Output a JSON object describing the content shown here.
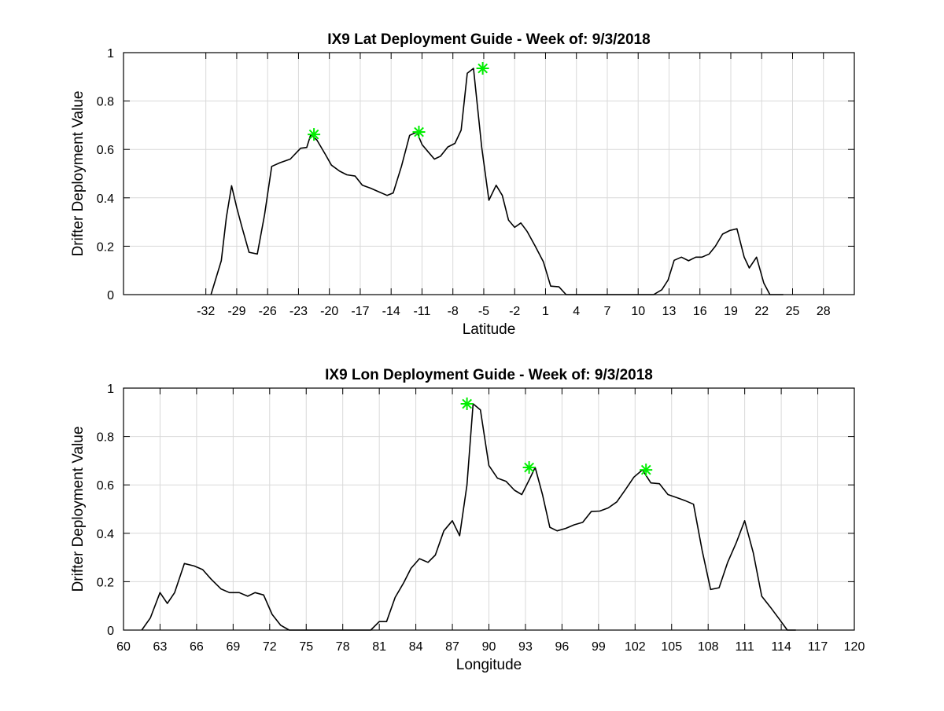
{
  "chart_data": [
    {
      "type": "line",
      "title": "IX9 Lat Deployment Guide - Week of: 9/3/2018",
      "xlabel": "Latitude",
      "ylabel": "Drifter Deployment Value",
      "xlim": [
        -40,
        31
      ],
      "ylim": [
        0,
        1
      ],
      "xticks": [
        -32,
        -29,
        -26,
        -23,
        -20,
        -17,
        -14,
        -11,
        -8,
        -5,
        -2,
        1,
        4,
        7,
        10,
        13,
        16,
        19,
        22,
        25,
        28
      ],
      "yticks": [
        0,
        0.2,
        0.4,
        0.6,
        0.8,
        1
      ],
      "grid": true,
      "series": [
        {
          "color": "#000000",
          "x": [
            -31.5,
            -30.5,
            -30,
            -29.5,
            -29,
            -28.5,
            -27.8,
            -27,
            -26.3,
            -25.6,
            -24.8,
            -23.8,
            -22.8,
            -22.2,
            -21.8,
            -21.2,
            -20.4,
            -19.8,
            -19,
            -18.3,
            -17.5,
            -16.8,
            -16,
            -15.2,
            -14.4,
            -13.8,
            -13,
            -12.2,
            -11.5,
            -11,
            -10.4,
            -9.8,
            -9.2,
            -8.5,
            -7.8,
            -7.2,
            -6.6,
            -6,
            -5.2,
            -4.5,
            -3.8,
            -3.2,
            -2.6,
            -2,
            -1.4,
            -0.8,
            0,
            0.8,
            1.5,
            2.3,
            3,
            4,
            4.7,
            5.5,
            6.5,
            7.5,
            8.5,
            9.5,
            10.5,
            11.5,
            12.3,
            12.9,
            13.5,
            14.2,
            14.9,
            15.6,
            16.2,
            16.9,
            17.5,
            18.2,
            18.9,
            19.6,
            20.3,
            20.8,
            21.5,
            22.2,
            22.8,
            23.5,
            24.1
          ],
          "y": [
            0.0,
            0.14,
            0.32,
            0.45,
            0.36,
            0.28,
            0.175,
            0.168,
            0.33,
            0.53,
            0.545,
            0.56,
            0.605,
            0.608,
            0.662,
            0.638,
            0.58,
            0.535,
            0.51,
            0.495,
            0.49,
            0.452,
            0.44,
            0.425,
            0.41,
            0.42,
            0.53,
            0.658,
            0.672,
            0.62,
            0.59,
            0.56,
            0.572,
            0.61,
            0.625,
            0.68,
            0.915,
            0.935,
            0.61,
            0.39,
            0.452,
            0.41,
            0.308,
            0.278,
            0.296,
            0.262,
            0.2,
            0.135,
            0.035,
            0.032,
            0.0,
            0.0,
            0.0,
            0.0,
            0.0,
            0.0,
            0.0,
            0.0,
            0.0,
            0.0,
            0.02,
            0.06,
            0.142,
            0.155,
            0.14,
            0.155,
            0.155,
            0.168,
            0.2,
            0.25,
            0.265,
            0.272,
            0.155,
            0.11,
            0.155,
            0.048,
            0.0,
            0.0,
            0.0
          ]
        }
      ],
      "markers": [
        {
          "x": -21.5,
          "y": 0.662,
          "color": "#00ee00"
        },
        {
          "x": -11.3,
          "y": 0.672,
          "color": "#00ee00"
        },
        {
          "x": -5.1,
          "y": 0.935,
          "color": "#00ee00"
        }
      ]
    },
    {
      "type": "line",
      "title": "IX9 Lon Deployment Guide - Week of: 9/3/2018",
      "xlabel": "Longitude",
      "ylabel": "Drifter Deployment Value",
      "xlim": [
        60,
        120
      ],
      "ylim": [
        0,
        1
      ],
      "xticks": [
        60,
        63,
        66,
        69,
        72,
        75,
        78,
        81,
        84,
        87,
        90,
        93,
        96,
        99,
        102,
        105,
        108,
        111,
        114,
        117,
        120
      ],
      "yticks": [
        0,
        0.2,
        0.4,
        0.6,
        0.8,
        1
      ],
      "grid": true,
      "series": [
        {
          "color": "#000000",
          "x": [
            61.5,
            62.2,
            63,
            63.6,
            64.2,
            65,
            65.8,
            66.5,
            67.2,
            68,
            68.7,
            69.5,
            70.2,
            70.8,
            71.5,
            72.2,
            72.9,
            73.6,
            74.5,
            75.5,
            76.5,
            77.5,
            78.5,
            79.5,
            80.3,
            81,
            81.6,
            82.3,
            83,
            83.6,
            84.3,
            85,
            85.6,
            86.3,
            87,
            87.6,
            88.2,
            88.7,
            89.3,
            90,
            90.7,
            91.4,
            92.1,
            92.7,
            93.3,
            93.8,
            94.4,
            95,
            95.6,
            96.3,
            97,
            97.7,
            98.4,
            99.1,
            99.8,
            100.5,
            101.2,
            101.9,
            102.6,
            103.3,
            104,
            104.7,
            105.4,
            106.1,
            106.8,
            107.5,
            108.2,
            108.9,
            109.6,
            110.3,
            111,
            111.7,
            112.4,
            113.1,
            113.8,
            114.5,
            115.2
          ],
          "y": [
            0.0,
            0.05,
            0.155,
            0.11,
            0.155,
            0.275,
            0.265,
            0.25,
            0.21,
            0.17,
            0.155,
            0.155,
            0.14,
            0.155,
            0.145,
            0.065,
            0.02,
            0.0,
            0.0,
            0.0,
            0.0,
            0.0,
            0.0,
            0.0,
            0.0,
            0.035,
            0.035,
            0.135,
            0.195,
            0.255,
            0.295,
            0.28,
            0.31,
            0.41,
            0.452,
            0.39,
            0.6,
            0.935,
            0.91,
            0.68,
            0.628,
            0.615,
            0.578,
            0.56,
            0.62,
            0.672,
            0.56,
            0.425,
            0.41,
            0.42,
            0.435,
            0.445,
            0.49,
            0.492,
            0.505,
            0.53,
            0.58,
            0.632,
            0.662,
            0.608,
            0.605,
            0.56,
            0.548,
            0.535,
            0.52,
            0.33,
            0.168,
            0.175,
            0.28,
            0.36,
            0.452,
            0.32,
            0.14,
            0.095,
            0.048,
            0.0,
            0.0
          ]
        }
      ],
      "markers": [
        {
          "x": 88.2,
          "y": 0.935,
          "color": "#00ee00"
        },
        {
          "x": 93.3,
          "y": 0.672,
          "color": "#00ee00"
        },
        {
          "x": 102.9,
          "y": 0.662,
          "color": "#00ee00"
        }
      ]
    }
  ]
}
